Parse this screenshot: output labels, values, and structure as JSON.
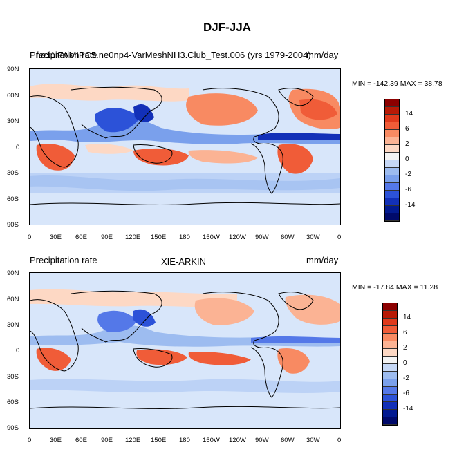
{
  "figure": {
    "title": "DJF-JJA"
  },
  "panels": [
    {
      "left_label": "Precipitation rate",
      "center_label": "f.e11.FAMIPC5.ne0np4-VarMeshNH3.Club_Test.006 (yrs 1979-2004)",
      "right_label": "mm/day",
      "minmax": "MIN = -142.39 MAX =  38.78"
    },
    {
      "left_label": "Precipitation rate",
      "center_label": "XIE-ARKIN",
      "right_label": "mm/day",
      "minmax": "MIN = -17.84 MAX =  11.28"
    }
  ],
  "axes": {
    "lat_ticks": [
      "90N",
      "60N",
      "30N",
      "0",
      "30S",
      "60S",
      "90S"
    ],
    "lon_ticks": [
      "0",
      "30E",
      "60E",
      "90E",
      "120E",
      "150E",
      "180",
      "150W",
      "120W",
      "90W",
      "60W",
      "30W",
      "0"
    ]
  },
  "colorbar": {
    "labels": [
      "14",
      "6",
      "2",
      "0",
      "-2",
      "-6",
      "-14"
    ],
    "colors": [
      "#8c0000",
      "#b81a06",
      "#e03a1c",
      "#f05c38",
      "#f88a62",
      "#fbb394",
      "#fdd8c4",
      "#f3f3f3",
      "#c6d8f6",
      "#9dbcf0",
      "#7aa0ec",
      "#5478e8",
      "#2c52d8",
      "#1230b8",
      "#021a90",
      "#000a6a"
    ]
  },
  "map_colors": {
    "ocean": "#d8e6fa",
    "wet": "#f59070",
    "very_wet": "#e44828",
    "dry": "#a8c4f2",
    "very_dry": "#2850d8",
    "coast": "#000000"
  }
}
